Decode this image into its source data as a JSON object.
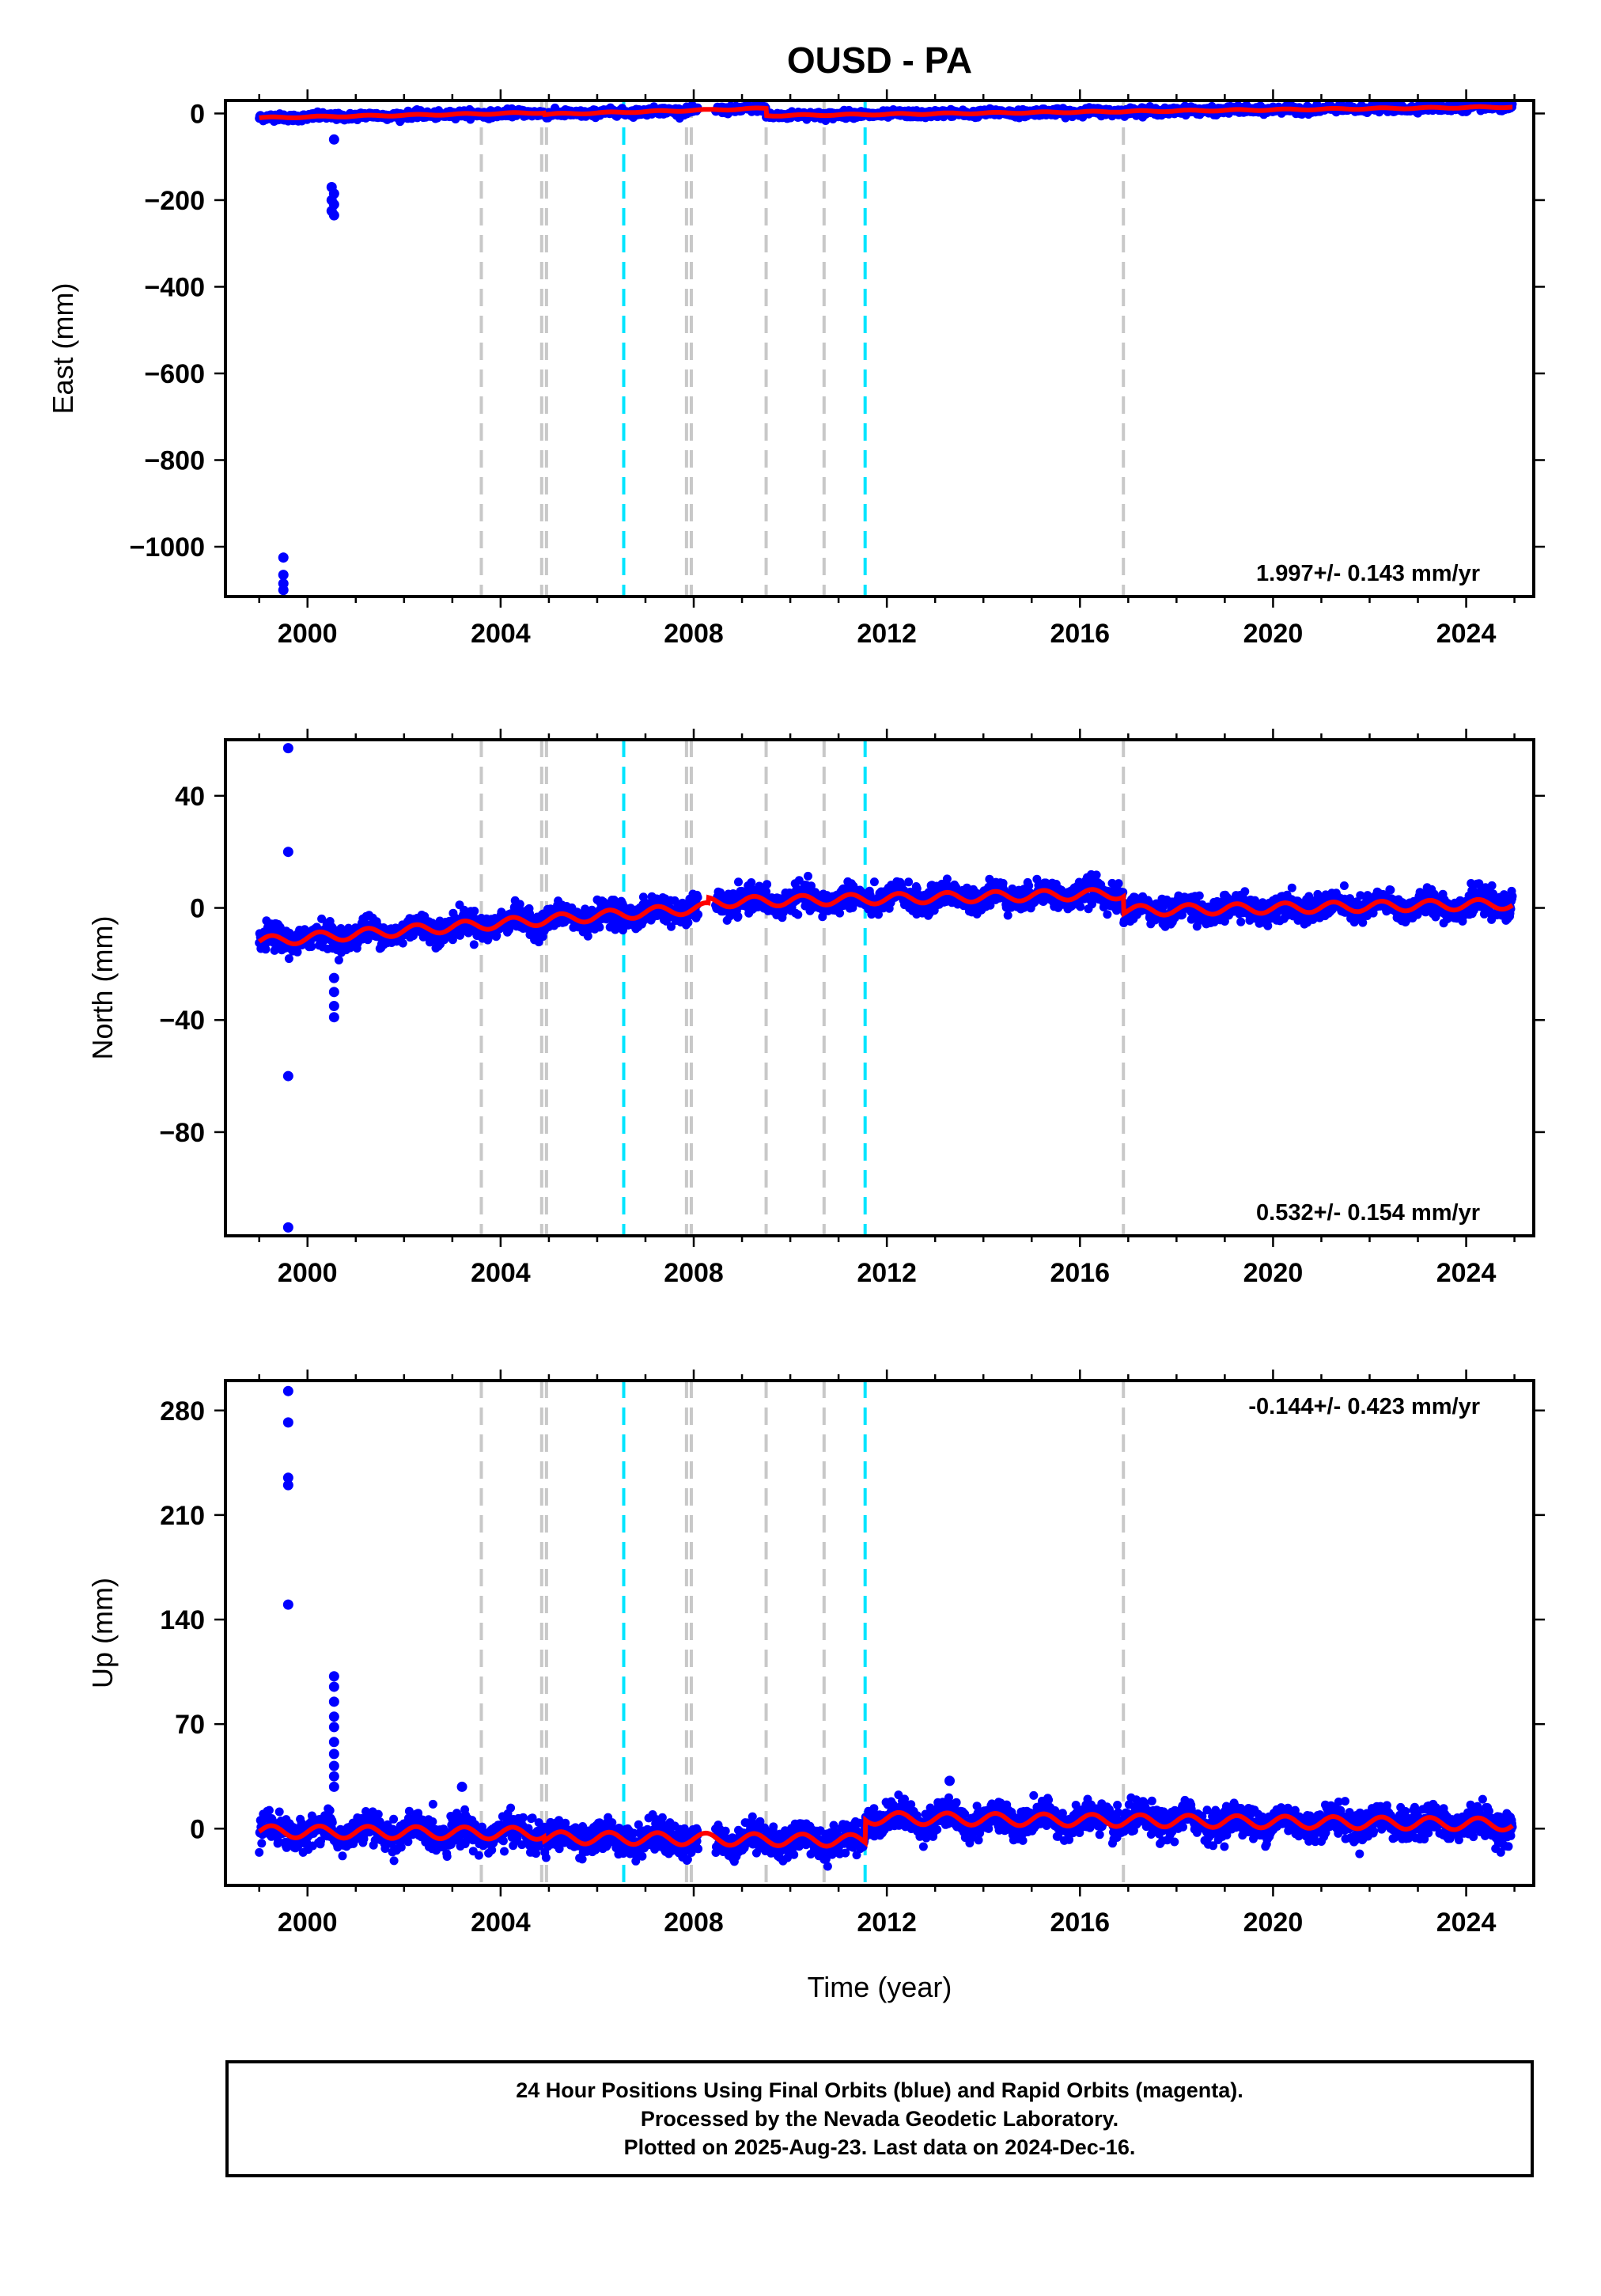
{
  "title": "OUSD - PA",
  "xlabel": "Time (year)",
  "colors": {
    "final_orbits": "#0000ff",
    "model": "#ff0000",
    "equipment_change": "#c8c8c8",
    "earthquake": "#00e5ff",
    "frame": "#000000"
  },
  "caption": {
    "line1": "24 Hour Positions Using Final Orbits (blue) and Rapid Orbits (magenta).",
    "line2": "Processed by the Nevada Geodetic Laboratory.",
    "line3": "Plotted on 2025-Aug-23. Last data on 2024-Dec-16."
  },
  "chart_data": [
    {
      "type": "scatter",
      "component": "east",
      "ylabel": "East (mm)",
      "rate_label": "1.997+/- 0.143 mm/yr",
      "rate_position": "bottom-right",
      "xlim": [
        1998.3,
        2025.4
      ],
      "ylim": [
        -1115,
        30
      ],
      "xticks": [
        2000,
        2004,
        2008,
        2012,
        2016,
        2020,
        2024
      ],
      "yticks": [
        0,
        -200,
        -400,
        -600,
        -800,
        -1000
      ],
      "ytick_labels": [
        "0",
        "−200",
        "−400",
        "−600",
        "−800",
        "−1000"
      ],
      "grid": false,
      "equipment_change_years": [
        2003.6,
        2004.85,
        2004.95,
        2007.85,
        2007.95,
        2009.5,
        2010.7,
        2016.9
      ],
      "earthquake_years": [
        2006.55,
        2011.55
      ],
      "model_segments": [
        {
          "start": 1999.0,
          "end": 2004.9,
          "offset_at_start": -10,
          "rate": 2.0,
          "seasonal": 1.5
        },
        {
          "start": 2004.9,
          "end": 2009.5,
          "offset_at_start": -2,
          "rate": 3.0,
          "seasonal": 1.5
        },
        {
          "start": 2009.5,
          "end": 2024.96,
          "offset_at_start": -5,
          "rate": 1.3,
          "seasonal": 1.5
        }
      ],
      "scatter_sigma": 4,
      "outliers": [
        {
          "x": 1999.5,
          "y": -1025
        },
        {
          "x": 1999.5,
          "y": -1065
        },
        {
          "x": 1999.5,
          "y": -1085
        },
        {
          "x": 1999.5,
          "y": -1100
        },
        {
          "x": 2000.55,
          "y": -60
        },
        {
          "x": 2000.5,
          "y": -170
        },
        {
          "x": 2000.55,
          "y": -185
        },
        {
          "x": 2000.5,
          "y": -200
        },
        {
          "x": 2000.55,
          "y": -210
        },
        {
          "x": 2000.5,
          "y": -225
        },
        {
          "x": 2000.55,
          "y": -235
        }
      ]
    },
    {
      "type": "scatter",
      "component": "north",
      "ylabel": "North (mm)",
      "rate_label": "0.532+/- 0.154 mm/yr",
      "rate_position": "bottom-right",
      "xlim": [
        1998.3,
        2025.4
      ],
      "ylim": [
        -117,
        60
      ],
      "xticks": [
        2000,
        2004,
        2008,
        2012,
        2016,
        2020,
        2024
      ],
      "yticks": [
        40,
        0,
        -40,
        -80
      ],
      "ytick_labels": [
        "40",
        "0",
        "−40",
        "−80"
      ],
      "grid": false,
      "equipment_change_years": [
        2003.6,
        2004.85,
        2004.95,
        2007.85,
        2007.95,
        2009.5,
        2010.7,
        2016.9
      ],
      "earthquake_years": [
        2006.55,
        2011.55
      ],
      "model_segments": [
        {
          "start": 1999.0,
          "end": 2008.3,
          "offset_at_start": -12,
          "rate": 1.3,
          "seasonal": 1.8
        },
        {
          "start": 2008.3,
          "end": 2016.9,
          "offset_at_start": 2,
          "rate": 0.35,
          "seasonal": 1.8
        },
        {
          "start": 2016.9,
          "end": 2024.96,
          "offset_at_start": -1,
          "rate": 0.3,
          "seasonal": 1.8
        }
      ],
      "scatter_sigma": 2.2,
      "outliers": [
        {
          "x": 1999.6,
          "y": 57
        },
        {
          "x": 1999.6,
          "y": 20
        },
        {
          "x": 1999.6,
          "y": -60
        },
        {
          "x": 1999.6,
          "y": -114
        },
        {
          "x": 2000.55,
          "y": -25
        },
        {
          "x": 2000.55,
          "y": -30
        },
        {
          "x": 2000.55,
          "y": -35
        },
        {
          "x": 2000.55,
          "y": -39
        }
      ]
    },
    {
      "type": "scatter",
      "component": "up",
      "ylabel": "Up (mm)",
      "rate_label": "-0.144+/- 0.423 mm/yr",
      "rate_position": "top-right",
      "xlim": [
        1998.3,
        2025.4
      ],
      "ylim": [
        -38,
        300
      ],
      "xticks": [
        2000,
        2004,
        2008,
        2012,
        2016,
        2020,
        2024
      ],
      "yticks": [
        280,
        210,
        140,
        70,
        0
      ],
      "ytick_labels": [
        "280",
        "210",
        "140",
        "70",
        "0"
      ],
      "grid": false,
      "equipment_change_years": [
        2003.6,
        2004.85,
        2004.95,
        2007.85,
        2007.95,
        2009.5,
        2010.7,
        2016.9
      ],
      "earthquake_years": [
        2006.55,
        2011.55
      ],
      "model_segments": [
        {
          "start": 1999.0,
          "end": 2004.9,
          "offset_at_start": -2,
          "rate": -0.2,
          "seasonal": 4
        },
        {
          "start": 2004.9,
          "end": 2011.55,
          "offset_at_start": -6,
          "rate": -0.3,
          "seasonal": 4
        },
        {
          "start": 2011.55,
          "end": 2024.96,
          "offset_at_start": 7,
          "rate": -0.3,
          "seasonal": 4
        }
      ],
      "scatter_sigma": 5,
      "outliers": [
        {
          "x": 1999.6,
          "y": 293
        },
        {
          "x": 1999.6,
          "y": 272
        },
        {
          "x": 1999.6,
          "y": 235
        },
        {
          "x": 1999.6,
          "y": 230
        },
        {
          "x": 1999.6,
          "y": 150
        },
        {
          "x": 2000.55,
          "y": 102
        },
        {
          "x": 2000.55,
          "y": 95
        },
        {
          "x": 2000.55,
          "y": 85
        },
        {
          "x": 2000.55,
          "y": 75
        },
        {
          "x": 2000.55,
          "y": 68
        },
        {
          "x": 2000.55,
          "y": 58
        },
        {
          "x": 2000.55,
          "y": 50
        },
        {
          "x": 2000.55,
          "y": 42
        },
        {
          "x": 2000.55,
          "y": 35
        },
        {
          "x": 2000.55,
          "y": 28
        },
        {
          "x": 2003.2,
          "y": 28
        },
        {
          "x": 2013.3,
          "y": 32
        }
      ]
    }
  ]
}
